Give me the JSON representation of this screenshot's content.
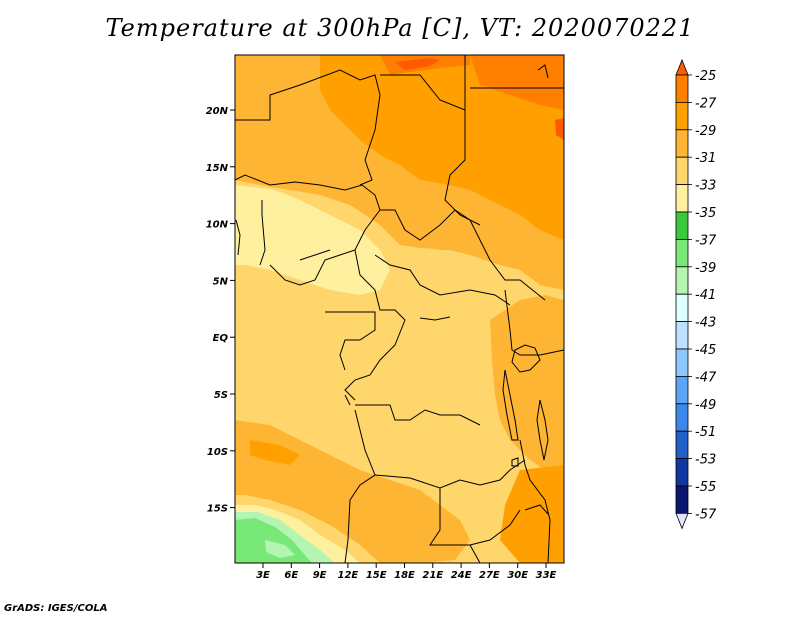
{
  "title": "Temperature at 300hPa [C], VT: 2020070221",
  "footer": "GrADS: IGES/COLA",
  "map": {
    "lat_labels": [
      "20N",
      "15N",
      "10N",
      "5N",
      "EQ",
      "5S",
      "10S",
      "15S"
    ],
    "lon_labels": [
      "3E",
      "6E",
      "9E",
      "12E",
      "15E",
      "18E",
      "21E",
      "24E",
      "27E",
      "30E",
      "33E"
    ]
  },
  "colorbar": {
    "labels": [
      "-25",
      "-27",
      "-29",
      "-31",
      "-33",
      "-35",
      "-37",
      "-39",
      "-41",
      "-43",
      "-45",
      "-47",
      "-49",
      "-51",
      "-53",
      "-55",
      "-57"
    ],
    "colors": [
      "#ff5a00",
      "#ff7f00",
      "#ffa000",
      "#ffb534",
      "#ffd66b",
      "#fff0a0",
      "#3cc83c",
      "#78e878",
      "#b4f5b4",
      "#e0ffff",
      "#bde0ff",
      "#8ec8ff",
      "#5aa6f5",
      "#3c88ea",
      "#2060c8",
      "#1038a0",
      "#0a1670",
      "#e4e4ff"
    ]
  },
  "colors": {
    "ocean": "#ffd66b",
    "warm": "#ffb534",
    "warmer": "#ffa000",
    "warmest": "#ff7f00",
    "hot": "#ff5a00",
    "cool": "#fff0a0",
    "green": "#78e878",
    "light_green": "#b4f5b4"
  }
}
